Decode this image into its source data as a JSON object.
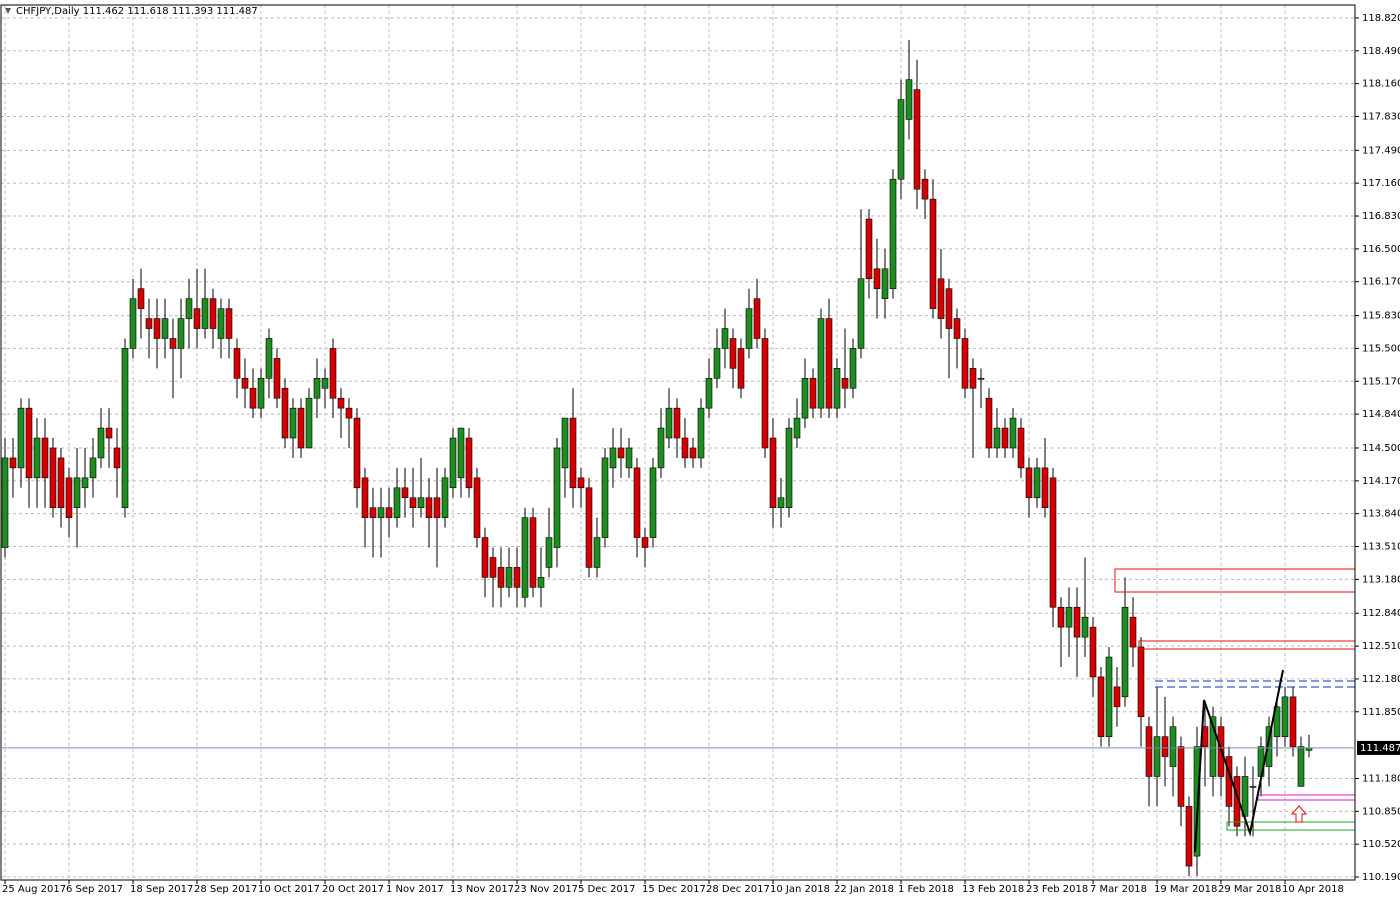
{
  "chart_data": {
    "type": "candlestick",
    "title": "CHFJPY,Daily  111.462 111.618 111.393 111.487",
    "categories": [
      "25 Aug 2017",
      null,
      null,
      null,
      null,
      null,
      null,
      null,
      "6 Sep 2017",
      null,
      null,
      null,
      null,
      null,
      null,
      null,
      "18 Sep 2017",
      null,
      null,
      null,
      null,
      null,
      null,
      null,
      "28 Sep 2017",
      null,
      null,
      null,
      null,
      null,
      null,
      null,
      "10 Oct 2017",
      null,
      null,
      null,
      null,
      null,
      null,
      null,
      "20 Oct 2017",
      null,
      null,
      null,
      null,
      null,
      null,
      null,
      "1 Nov 2017",
      null,
      null,
      null,
      null,
      null,
      null,
      null,
      "13 Nov 2017",
      null,
      null,
      null,
      null,
      null,
      null,
      null,
      "23 Nov 2017",
      null,
      null,
      null,
      null,
      null,
      null,
      null,
      "5 Dec 2017",
      null,
      null,
      null,
      null,
      null,
      null,
      null,
      "15 Dec 2017",
      null,
      null,
      null,
      null,
      null,
      null,
      null,
      "28 Dec 2017",
      null,
      null,
      null,
      null,
      null,
      null,
      null,
      "10 Jan 2018",
      null,
      null,
      null,
      null,
      null,
      null,
      null,
      "22 Jan 2018",
      null,
      null,
      null,
      null,
      null,
      null,
      null,
      "1 Feb 2018",
      null,
      null,
      null,
      null,
      null,
      null,
      null,
      "13 Feb 2018",
      null,
      null,
      null,
      null,
      null,
      null,
      null,
      "23 Feb 2018",
      null,
      null,
      null,
      null,
      null,
      null,
      null,
      "7 Mar 2018",
      null,
      null,
      null,
      null,
      null,
      null,
      null,
      "19 Mar 2018",
      null,
      null,
      null,
      null,
      null,
      null,
      null,
      "29 Mar 2018",
      null,
      null,
      null,
      null,
      null,
      null,
      null,
      "10 Apr 2018",
      null,
      null,
      null
    ],
    "open": [
      113.5,
      114.4,
      114.3,
      114.9,
      114.2,
      114.6,
      114.5,
      114.4,
      114.2,
      113.9,
      114.1,
      114.2,
      114.4,
      114.7,
      114.5,
      113.9,
      115.5,
      116.1,
      115.8,
      115.8,
      115.6,
      115.6,
      115.5,
      115.8,
      115.9,
      115.7,
      116.0,
      115.6,
      115.9,
      115.5,
      115.2,
      115.1,
      114.9,
      115.2,
      115.4,
      115.1,
      114.6,
      114.9,
      114.5,
      115.0,
      115.1,
      115.5,
      115.0,
      114.9,
      114.8,
      114.2,
      113.9,
      113.8,
      113.9,
      113.8,
      114.1,
      114.0,
      113.9,
      114.0,
      114.0,
      113.8,
      114.1,
      114.2,
      114.6,
      114.2,
      113.6,
      113.4,
      113.3,
      113.1,
      113.3,
      113.0,
      113.8,
      113.1,
      113.3,
      113.5,
      114.3,
      114.8,
      114.2,
      114.1,
      113.3,
      113.6,
      114.3,
      114.5,
      114.3,
      114.3,
      113.6,
      113.6,
      114.3,
      114.6,
      114.9,
      114.6,
      114.5,
      114.4,
      114.9,
      115.2,
      115.5,
      115.6,
      115.5,
      115.5,
      116.0,
      115.6,
      114.6,
      113.9,
      113.9,
      114.6,
      114.8,
      115.2,
      114.9,
      115.8,
      114.9,
      115.2,
      115.1,
      115.5,
      116.8,
      116.3,
      116.0,
      116.1,
      117.2,
      117.8,
      118.1,
      117.2,
      117.0,
      116.2,
      116.1,
      115.8,
      115.6,
      115.3,
      115.2,
      115.0,
      114.5,
      114.7,
      114.5,
      114.7,
      114.3,
      114.0,
      114.3,
      114.2,
      112.9,
      112.7,
      112.9,
      112.6,
      112.7,
      112.2,
      111.6,
      112.1,
      112.0,
      112.8,
      112.5,
      111.7,
      111.2,
      111.6,
      111.3,
      111.5,
      110.9,
      110.4,
      111.7,
      111.2,
      111.7,
      111.4,
      111.2,
      110.8,
      111.1,
      111.2,
      111.3,
      111.6,
      111.6,
      112.0,
      111.1,
      111.462
    ],
    "high": [
      114.6,
      114.6,
      115.0,
      115.0,
      114.8,
      114.8,
      114.6,
      114.5,
      114.3,
      114.5,
      114.5,
      114.6,
      114.9,
      114.9,
      114.7,
      115.6,
      116.2,
      116.3,
      116.0,
      116.0,
      116.0,
      115.8,
      116.0,
      116.2,
      116.3,
      116.3,
      116.1,
      116.0,
      116.0,
      115.6,
      115.4,
      115.3,
      115.3,
      115.7,
      115.5,
      115.2,
      115.0,
      115.0,
      115.1,
      115.4,
      115.3,
      115.6,
      115.1,
      115.0,
      114.9,
      114.3,
      114.1,
      114.1,
      114.1,
      114.3,
      114.3,
      114.3,
      114.4,
      114.2,
      114.3,
      114.3,
      114.7,
      114.7,
      114.7,
      114.3,
      113.7,
      113.5,
      113.5,
      113.5,
      113.5,
      113.9,
      113.9,
      113.5,
      113.9,
      114.6,
      114.8,
      115.1,
      114.3,
      114.2,
      113.8,
      114.5,
      114.7,
      114.7,
      114.6,
      114.4,
      113.7,
      114.4,
      114.9,
      115.1,
      115.0,
      114.8,
      114.6,
      115.0,
      115.4,
      115.7,
      115.9,
      115.7,
      115.6,
      116.1,
      116.2,
      115.7,
      114.8,
      114.2,
      114.8,
      115.0,
      115.4,
      115.3,
      115.9,
      116.0,
      115.4,
      115.7,
      115.6,
      116.9,
      116.9,
      116.6,
      116.5,
      117.3,
      118.2,
      118.6,
      118.4,
      117.3,
      117.2,
      116.5,
      116.2,
      115.9,
      115.7,
      115.4,
      115.3,
      115.1,
      114.9,
      114.8,
      114.9,
      114.8,
      114.4,
      114.4,
      114.6,
      114.3,
      113.0,
      113.1,
      113.1,
      113.4,
      112.8,
      112.3,
      112.5,
      112.3,
      113.2,
      113.0,
      112.6,
      111.8,
      112.1,
      112.0,
      111.8,
      111.6,
      111.0,
      111.7,
      111.9,
      111.9,
      111.8,
      111.5,
      111.3,
      111.4,
      111.3,
      111.6,
      111.8,
      112.0,
      112.1,
      112.1,
      111.6,
      111.618
    ],
    "low": [
      113.4,
      114.0,
      114.1,
      113.9,
      113.9,
      113.9,
      113.8,
      113.7,
      113.6,
      113.5,
      113.9,
      114.0,
      114.3,
      114.3,
      114.0,
      113.8,
      115.4,
      115.6,
      115.4,
      115.3,
      115.4,
      115.0,
      115.2,
      115.5,
      115.5,
      115.6,
      115.5,
      115.4,
      115.4,
      115.0,
      114.9,
      114.8,
      114.8,
      115.0,
      114.9,
      114.5,
      114.4,
      114.4,
      114.5,
      114.8,
      114.9,
      114.8,
      114.6,
      114.5,
      113.9,
      113.5,
      113.4,
      113.4,
      113.6,
      113.7,
      113.8,
      113.7,
      113.8,
      113.5,
      113.3,
      113.7,
      114.0,
      114.0,
      114.0,
      113.5,
      113.0,
      112.9,
      112.9,
      113.0,
      112.9,
      112.9,
      113.0,
      112.9,
      113.2,
      113.3,
      114.0,
      113.9,
      113.9,
      113.2,
      113.2,
      113.5,
      114.1,
      114.2,
      114.2,
      113.4,
      113.3,
      113.5,
      114.2,
      114.5,
      114.4,
      114.3,
      114.3,
      114.3,
      114.8,
      115.1,
      115.3,
      115.1,
      115.0,
      115.4,
      115.5,
      114.4,
      113.7,
      113.7,
      113.8,
      114.5,
      114.7,
      114.8,
      114.8,
      114.8,
      114.8,
      114.9,
      115.0,
      115.4,
      116.0,
      115.8,
      115.8,
      116.0,
      117.0,
      117.6,
      116.9,
      116.8,
      115.8,
      115.6,
      115.2,
      115.3,
      115.0,
      114.4,
      114.9,
      114.4,
      114.4,
      114.4,
      114.4,
      114.2,
      113.8,
      113.9,
      113.8,
      112.7,
      112.3,
      112.4,
      112.2,
      112.4,
      112.0,
      111.5,
      111.5,
      111.7,
      111.9,
      112.3,
      111.5,
      110.9,
      110.9,
      111.1,
      111.0,
      110.7,
      110.2,
      110.2,
      111.1,
      111.0,
      111.0,
      110.7,
      110.6,
      110.6,
      110.6,
      111.0,
      111.1,
      111.4,
      111.5,
      111.4,
      111.1,
      111.393
    ],
    "close": [
      114.4,
      114.3,
      114.9,
      114.2,
      114.6,
      114.2,
      113.9,
      113.9,
      113.8,
      114.2,
      114.2,
      114.4,
      114.7,
      114.6,
      114.3,
      115.5,
      116.0,
      115.9,
      115.7,
      115.6,
      115.8,
      115.5,
      115.8,
      116.0,
      115.7,
      116.0,
      115.7,
      115.9,
      115.6,
      115.2,
      115.1,
      114.9,
      115.2,
      115.6,
      115.0,
      114.6,
      114.9,
      114.5,
      115.0,
      115.2,
      115.2,
      115.0,
      114.9,
      114.8,
      114.1,
      113.8,
      113.8,
      113.9,
      113.8,
      114.1,
      114.0,
      113.9,
      114.0,
      113.8,
      113.8,
      114.2,
      114.6,
      114.7,
      114.1,
      113.6,
      113.2,
      113.2,
      113.1,
      113.3,
      113.1,
      113.8,
      113.1,
      113.2,
      113.6,
      114.5,
      114.8,
      114.1,
      114.1,
      113.3,
      113.6,
      114.4,
      114.5,
      114.4,
      114.5,
      113.6,
      113.5,
      114.3,
      114.7,
      114.9,
      114.6,
      114.4,
      114.4,
      114.9,
      115.2,
      115.5,
      115.7,
      115.3,
      115.1,
      115.9,
      115.6,
      114.5,
      113.9,
      114.0,
      114.7,
      114.8,
      115.2,
      114.9,
      115.8,
      114.9,
      115.3,
      115.1,
      115.5,
      116.2,
      116.2,
      116.1,
      116.3,
      117.2,
      118.0,
      118.2,
      117.1,
      117.0,
      115.9,
      115.8,
      115.7,
      115.6,
      115.1,
      115.1,
      115.2,
      114.5,
      114.7,
      114.5,
      114.8,
      114.3,
      114.0,
      114.3,
      113.9,
      112.9,
      112.7,
      112.9,
      112.6,
      112.8,
      112.2,
      111.6,
      112.4,
      111.9,
      112.9,
      112.5,
      111.8,
      111.2,
      111.6,
      111.4,
      111.7,
      110.9,
      110.3,
      111.5,
      111.5,
      111.8,
      111.2,
      110.9,
      110.7,
      111.2,
      111.1,
      111.5,
      111.7,
      111.9,
      112.0,
      111.5,
      111.5,
      111.487
    ],
    "last_price": 111.487,
    "up_color": "#1f8c1f",
    "down_color": "#d50000",
    "ylim": [
      110.16,
      118.95
    ],
    "yticks": [
      {
        "value": 118.82,
        "label": "118.820"
      },
      {
        "value": 118.49,
        "label": "118.490"
      },
      {
        "value": 118.16,
        "label": "118.160"
      },
      {
        "value": 117.83,
        "label": "117.830"
      },
      {
        "value": 117.49,
        "label": "117.490"
      },
      {
        "value": 117.16,
        "label": "117.160"
      },
      {
        "value": 116.83,
        "label": "116.830"
      },
      {
        "value": 116.5,
        "label": "116.500"
      },
      {
        "value": 116.17,
        "label": "116.170"
      },
      {
        "value": 115.83,
        "label": "115.830"
      },
      {
        "value": 115.5,
        "label": "115.500"
      },
      {
        "value": 115.17,
        "label": "115.170"
      },
      {
        "value": 114.84,
        "label": "114.840"
      },
      {
        "value": 114.5,
        "label": "114.500"
      },
      {
        "value": 114.17,
        "label": "114.170"
      },
      {
        "value": 113.84,
        "label": "113.840"
      },
      {
        "value": 113.51,
        "label": "113.510"
      },
      {
        "value": 113.18,
        "label": "113.180"
      },
      {
        "value": 112.84,
        "label": "112.840"
      },
      {
        "value": 112.51,
        "label": "112.510"
      },
      {
        "value": 112.18,
        "label": "112.180"
      },
      {
        "value": 111.85,
        "label": "111.850"
      },
      {
        "value": 111.18,
        "label": "111.180"
      },
      {
        "value": 110.85,
        "label": "110.850"
      },
      {
        "value": 110.52,
        "label": "110.520"
      },
      {
        "value": 110.19,
        "label": "110.190"
      }
    ],
    "grid": true
  }
}
